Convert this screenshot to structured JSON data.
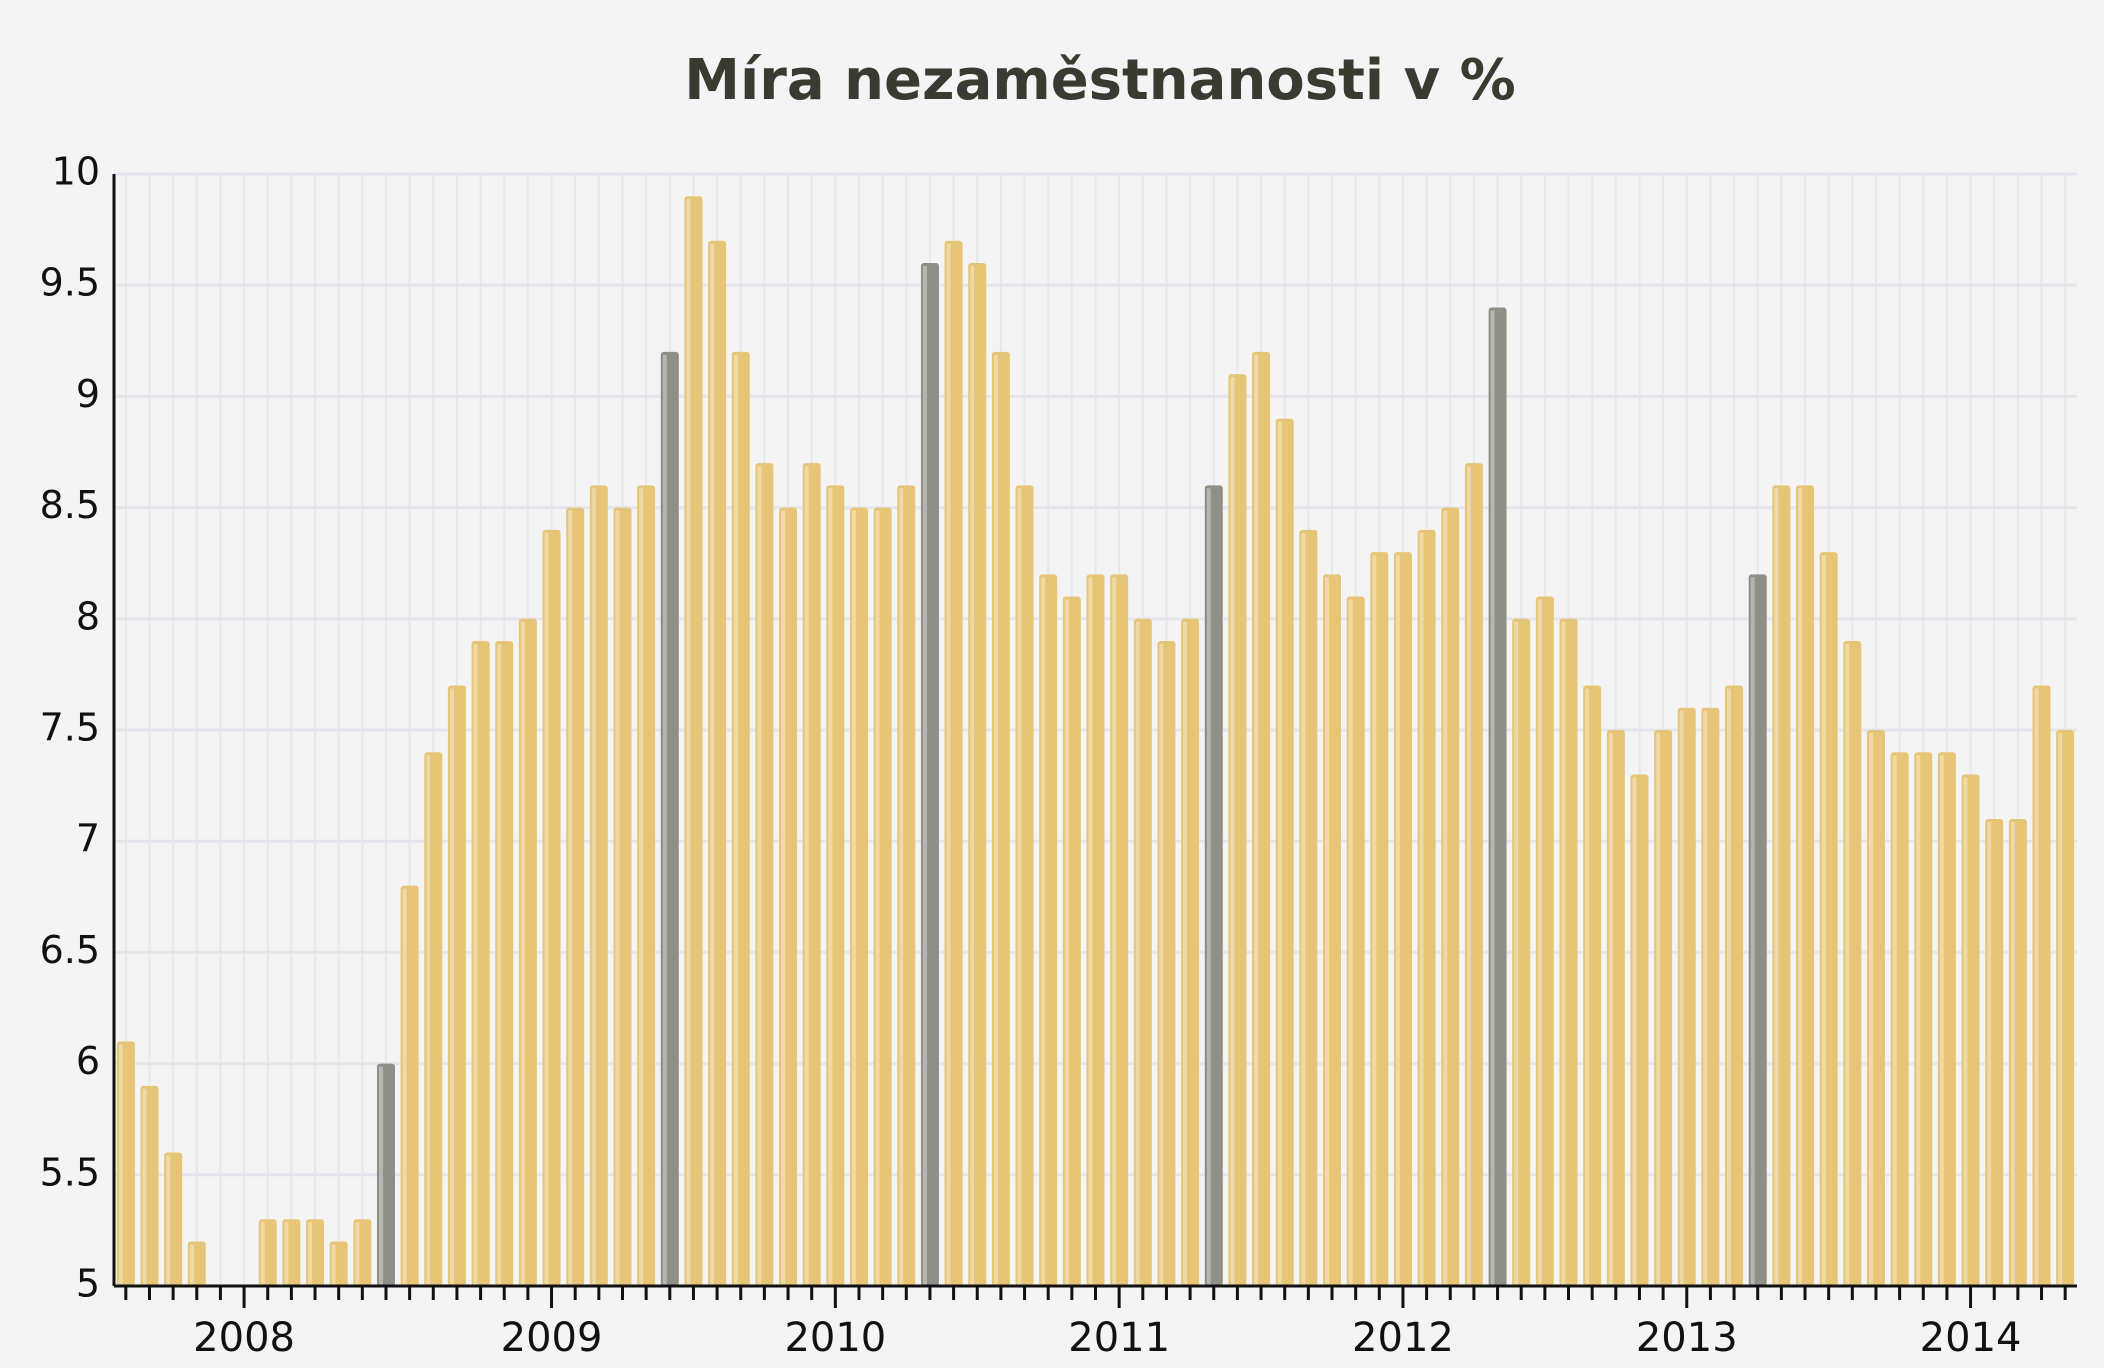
{
  "chart_data": {
    "type": "bar",
    "title": "Míra nezaměstnanosti v %",
    "categories": [
      null,
      null,
      null,
      null,
      null,
      "2008",
      null,
      null,
      null,
      null,
      null,
      null,
      null,
      null,
      null,
      null,
      null,
      null,
      "2009",
      null,
      null,
      null,
      null,
      null,
      null,
      null,
      null,
      null,
      null,
      null,
      "2010",
      null,
      null,
      null,
      null,
      null,
      null,
      null,
      null,
      null,
      null,
      null,
      "2011",
      null,
      null,
      null,
      null,
      null,
      null,
      null,
      null,
      null,
      null,
      null,
      "2012",
      null,
      null,
      null,
      null,
      null,
      null,
      null,
      null,
      null,
      null,
      null,
      "2013",
      null,
      null,
      null,
      null,
      null,
      null,
      null,
      null,
      null,
      null,
      null,
      "2014",
      null,
      null,
      null,
      null
    ],
    "values": [
      6.1,
      5.9,
      5.6,
      5.2,
      null,
      null,
      5.3,
      5.3,
      5.3,
      5.2,
      5.3,
      6.0,
      6.8,
      7.4,
      7.7,
      7.9,
      7.9,
      8.0,
      8.4,
      8.5,
      8.6,
      8.5,
      8.6,
      9.2,
      9.9,
      9.7,
      9.2,
      8.7,
      8.5,
      8.7,
      8.6,
      8.5,
      8.5,
      8.6,
      9.6,
      9.7,
      9.6,
      9.2,
      8.6,
      8.2,
      8.1,
      8.2,
      8.2,
      8.0,
      7.9,
      8.0,
      8.6,
      9.1,
      9.2,
      8.9,
      8.4,
      8.2,
      8.1,
      8.3,
      8.3,
      8.4,
      8.5,
      8.7,
      9.4,
      8.0,
      8.1,
      8.0,
      7.7,
      7.5,
      7.3,
      7.5,
      7.6,
      7.6,
      7.7,
      8.2,
      8.6,
      8.6,
      8.3,
      7.9,
      7.5,
      7.4,
      7.4,
      7.4,
      7.3,
      7.1,
      7.1,
      7.7,
      7.5
    ],
    "colors": [
      "#e6c577",
      "#e6c577",
      "#e6c577",
      "#e6c577",
      "#e6c577",
      "#e6c577",
      "#e6c577",
      "#e6c577",
      "#e6c577",
      "#e6c577",
      "#e6c577",
      "#8f8f88",
      "#e6c577",
      "#e6c577",
      "#e6c577",
      "#e6c577",
      "#e6c577",
      "#e6c577",
      "#e6c577",
      "#e6c577",
      "#e6c577",
      "#e6c577",
      "#e6c577",
      "#8f8f88",
      "#e6c577",
      "#e6c577",
      "#e6c577",
      "#e6c577",
      "#e6c577",
      "#e6c577",
      "#e6c577",
      "#e6c577",
      "#e6c577",
      "#e6c577",
      "#8f8f88",
      "#e6c577",
      "#e6c577",
      "#e6c577",
      "#e6c577",
      "#e6c577",
      "#e6c577",
      "#e6c577",
      "#e6c577",
      "#e6c577",
      "#e6c577",
      "#e6c577",
      "#8f8f88",
      "#e6c577",
      "#e6c577",
      "#e6c577",
      "#e6c577",
      "#e6c577",
      "#e6c577",
      "#e6c577",
      "#e6c577",
      "#e6c577",
      "#e6c577",
      "#e6c577",
      "#8f8f88",
      "#e6c577",
      "#e6c577",
      "#e6c577",
      "#e6c577",
      "#e6c577",
      "#e6c577",
      "#e6c577",
      "#e6c577",
      "#e6c577",
      "#e6c577",
      "#8f8f88",
      "#e6c577",
      "#e6c577",
      "#e6c577",
      "#e6c577",
      "#e6c577",
      "#e6c577",
      "#e6c577",
      "#e6c577",
      "#e6c577",
      "#e6c577",
      "#e6c577",
      "#e6c577",
      "#e6c577"
    ],
    "ylim": [
      5,
      10
    ],
    "yticks": [
      5,
      5.5,
      6,
      6.5,
      7,
      7.5,
      8,
      8.5,
      9,
      9.5,
      10
    ],
    "grid": true
  }
}
